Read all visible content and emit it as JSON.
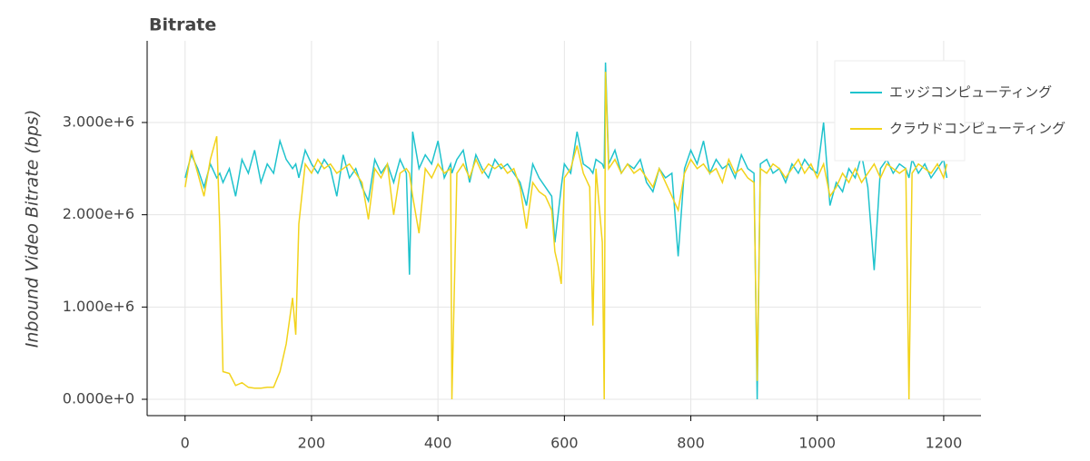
{
  "chart_data": {
    "type": "line",
    "title": "Bitrate",
    "y_label": "Inbound Video Bitrate (bps)",
    "x": [
      0,
      10,
      20,
      30,
      40,
      50,
      55,
      60,
      70,
      80,
      90,
      100,
      110,
      120,
      130,
      140,
      150,
      160,
      170,
      175,
      180,
      190,
      200,
      210,
      220,
      230,
      240,
      250,
      260,
      270,
      280,
      290,
      300,
      310,
      320,
      330,
      340,
      350,
      355,
      360,
      370,
      380,
      390,
      400,
      410,
      420,
      422,
      430,
      440,
      450,
      460,
      470,
      480,
      490,
      500,
      510,
      520,
      530,
      540,
      550,
      560,
      570,
      580,
      585,
      590,
      595,
      600,
      610,
      620,
      630,
      640,
      645,
      650,
      660,
      663,
      665,
      670,
      680,
      690,
      700,
      710,
      720,
      730,
      740,
      750,
      760,
      770,
      780,
      790,
      800,
      810,
      820,
      830,
      840,
      850,
      860,
      870,
      880,
      890,
      900,
      905,
      910,
      920,
      930,
      940,
      950,
      960,
      970,
      980,
      990,
      1000,
      1010,
      1020,
      1030,
      1040,
      1050,
      1060,
      1070,
      1080,
      1090,
      1100,
      1110,
      1120,
      1130,
      1140,
      1145,
      1150,
      1160,
      1170,
      1180,
      1190,
      1200,
      1205
    ],
    "series": [
      {
        "name": "エッジコンピューティング",
        "color": "#1fc3cd",
        "values": [
          2400000,
          2650000,
          2500000,
          2300000,
          2550000,
          2400000,
          2450000,
          2350000,
          2500000,
          2200000,
          2600000,
          2450000,
          2700000,
          2350000,
          2550000,
          2450000,
          2800000,
          2600000,
          2500000,
          2550000,
          2400000,
          2700000,
          2550000,
          2450000,
          2600000,
          2500000,
          2200000,
          2650000,
          2400000,
          2500000,
          2300000,
          2150000,
          2600000,
          2450000,
          2550000,
          2350000,
          2600000,
          2450000,
          1350000,
          2900000,
          2500000,
          2650000,
          2550000,
          2800000,
          2400000,
          2550000,
          2450000,
          2600000,
          2700000,
          2350000,
          2650000,
          2500000,
          2400000,
          2600000,
          2500000,
          2550000,
          2450000,
          2350000,
          2100000,
          2550000,
          2400000,
          2300000,
          2200000,
          1700000,
          2000000,
          2300000,
          2550000,
          2450000,
          2900000,
          2550000,
          2500000,
          2450000,
          2600000,
          2550000,
          2500000,
          3650000,
          2550000,
          2700000,
          2450000,
          2550000,
          2500000,
          2600000,
          2350000,
          2250000,
          2500000,
          2400000,
          2450000,
          1550000,
          2500000,
          2700000,
          2550000,
          2800000,
          2450000,
          2600000,
          2500000,
          2550000,
          2400000,
          2650000,
          2500000,
          2450000,
          0,
          2550000,
          2600000,
          2450000,
          2500000,
          2350000,
          2550000,
          2450000,
          2600000,
          2500000,
          2450000,
          3000000,
          2100000,
          2350000,
          2250000,
          2500000,
          2400000,
          2650000,
          2300000,
          1400000,
          2500000,
          2600000,
          2450000,
          2550000,
          2500000,
          2400000,
          2600000,
          2450000,
          2550000,
          2400000,
          2500000,
          2600000,
          2400000
        ]
      },
      {
        "name": "クラウドコンピューティング",
        "color": "#f2d31b",
        "values": [
          2300000,
          2700000,
          2450000,
          2200000,
          2600000,
          2850000,
          1850000,
          300000,
          280000,
          150000,
          180000,
          130000,
          120000,
          120000,
          130000,
          130000,
          300000,
          600000,
          1100000,
          700000,
          1900000,
          2550000,
          2450000,
          2600000,
          2500000,
          2550000,
          2450000,
          2500000,
          2550000,
          2450000,
          2350000,
          1950000,
          2500000,
          2400000,
          2550000,
          2000000,
          2450000,
          2500000,
          2450000,
          2200000,
          1800000,
          2500000,
          2400000,
          2550000,
          2450000,
          2500000,
          0,
          2450000,
          2550000,
          2400000,
          2600000,
          2450000,
          2550000,
          2500000,
          2550000,
          2450000,
          2500000,
          2300000,
          1850000,
          2350000,
          2250000,
          2200000,
          2050000,
          1600000,
          1450000,
          1250000,
          2400000,
          2500000,
          2750000,
          2450000,
          2300000,
          800000,
          2500000,
          1700000,
          0,
          3550000,
          2500000,
          2600000,
          2450000,
          2550000,
          2450000,
          2500000,
          2400000,
          2300000,
          2500000,
          2350000,
          2200000,
          2050000,
          2450000,
          2600000,
          2500000,
          2550000,
          2450000,
          2500000,
          2350000,
          2600000,
          2450000,
          2500000,
          2400000,
          2350000,
          200000,
          2500000,
          2450000,
          2550000,
          2500000,
          2400000,
          2500000,
          2600000,
          2450000,
          2550000,
          2400000,
          2550000,
          2200000,
          2300000,
          2450000,
          2350000,
          2500000,
          2350000,
          2450000,
          2550000,
          2400000,
          2550000,
          2500000,
          2450000,
          2500000,
          0,
          2450000,
          2550000,
          2500000,
          2450000,
          2550000,
          2400000,
          2550000
        ]
      }
    ],
    "xlim": [
      -60,
      1259
    ],
    "xticks": [
      0,
      200,
      400,
      600,
      800,
      1000,
      1200
    ],
    "ylim": [
      -177000,
      3885000
    ],
    "yticks": [
      {
        "value": 0,
        "label": "0.000e+0"
      },
      {
        "value": 1000000,
        "label": "1.000e+6"
      },
      {
        "value": 2000000,
        "label": "2.000e+6"
      },
      {
        "value": 3000000,
        "label": "3.000e+6"
      }
    ],
    "grid": true,
    "legend": "top-right"
  }
}
